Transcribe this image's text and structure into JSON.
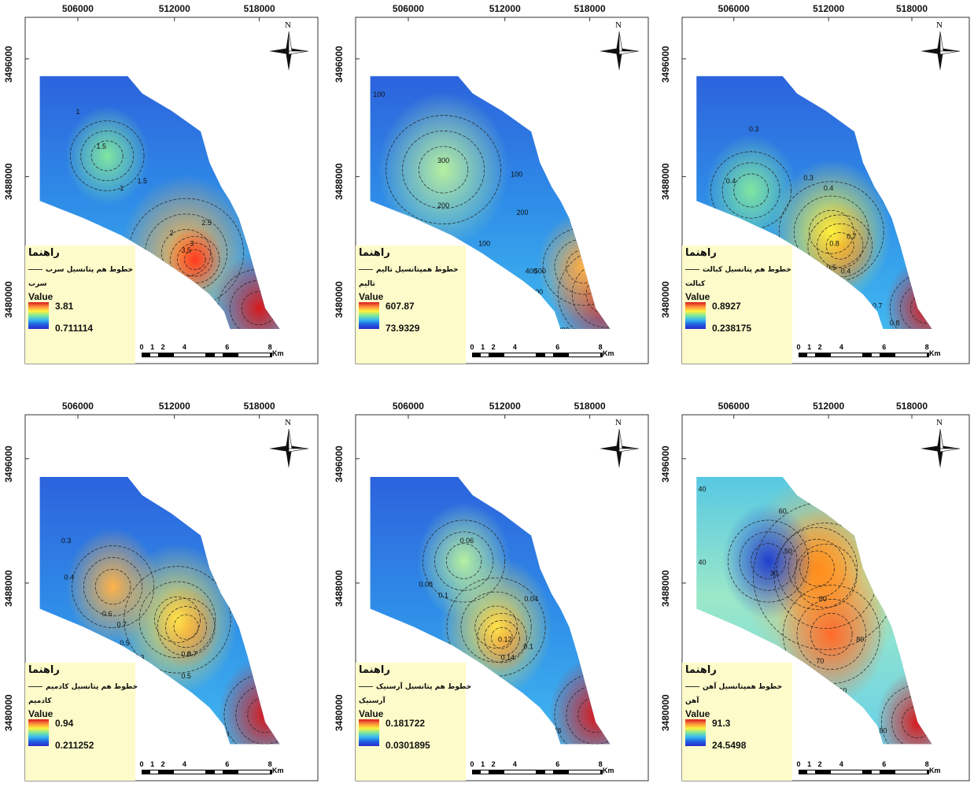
{
  "axis_ticks": {
    "x": [
      "506000",
      "512000",
      "518000"
    ],
    "y": [
      "3496000",
      "3488000",
      "3480000"
    ]
  },
  "legend_title": "راهنما",
  "legend_value_label": "Value",
  "north_label": "N",
  "scale": {
    "labels": [
      "0",
      "1",
      "2",
      "4",
      "6",
      "8"
    ],
    "unit": "Km"
  },
  "maps": [
    {
      "id": "lead",
      "legend_line": "خطوط هم پتانسیل سرب",
      "legend_element": "سرب",
      "value_high": "3.81",
      "value_low": "0.711114",
      "contour_labels": [
        "1",
        "1.5",
        "1",
        "1.5",
        "2",
        "2.5",
        "3",
        "3.5",
        "2",
        "1",
        "1.5",
        "2.5",
        "3"
      ]
    },
    {
      "id": "thallium",
      "legend_line": "خطوط همپتانسیل تالیم",
      "legend_element": "تالیم",
      "value_high": "607.87",
      "value_low": "73.9329",
      "contour_labels": [
        "100",
        "300",
        "200",
        "100",
        "200",
        "100",
        "400",
        "300",
        "500",
        "200",
        "200"
      ]
    },
    {
      "id": "cobalt",
      "legend_line": "خطوط هم پتانسیل کبالت",
      "legend_element": "کبالت",
      "value_high": "0.8927",
      "value_low": "0.238175",
      "contour_labels": [
        "0.3",
        "0.4",
        "0.3",
        "0.4",
        "0.7",
        "0.8",
        "0.5",
        "0.4",
        "0.6",
        "0.7",
        "0.8"
      ]
    },
    {
      "id": "cadmium",
      "legend_line": "خطوط هم پتانسیل کادمیم",
      "legend_element": "کادمیم",
      "value_high": "0.94",
      "value_low": "0.211252",
      "contour_labels": [
        "0.3",
        "0.4",
        "0.6",
        "0.7",
        "0.5",
        "0.3",
        "0.8",
        "0.7",
        "0.5",
        "0.4",
        "0.6",
        "0.7",
        "0.8",
        "0.9"
      ]
    },
    {
      "id": "arsenic",
      "legend_line": "خطوط هم پتانسیل آرسنیک",
      "legend_element": "آرسنیک",
      "value_high": "0.181722",
      "value_low": "0.0301895",
      "contour_labels": [
        "0.06",
        "0.08",
        "0.1",
        "0.04",
        "0.12",
        "0.1",
        "0.14",
        "0.06",
        "0.08",
        "0.12",
        "0.14",
        "0.16"
      ]
    },
    {
      "id": "iron",
      "legend_line": "خطوط همپتانسیل آهن",
      "legend_element": "آهن",
      "value_high": "91.3",
      "value_low": "24.5498",
      "contour_labels": [
        "40",
        "60",
        "40",
        "50",
        "30",
        "80",
        "70",
        "80",
        "60",
        "60",
        "50",
        "70",
        "80"
      ]
    }
  ],
  "colors": {
    "low": "#2b2bcf",
    "mid": "#fff33b",
    "high": "#d7191c",
    "legend_bg": "#fdfbc9"
  }
}
